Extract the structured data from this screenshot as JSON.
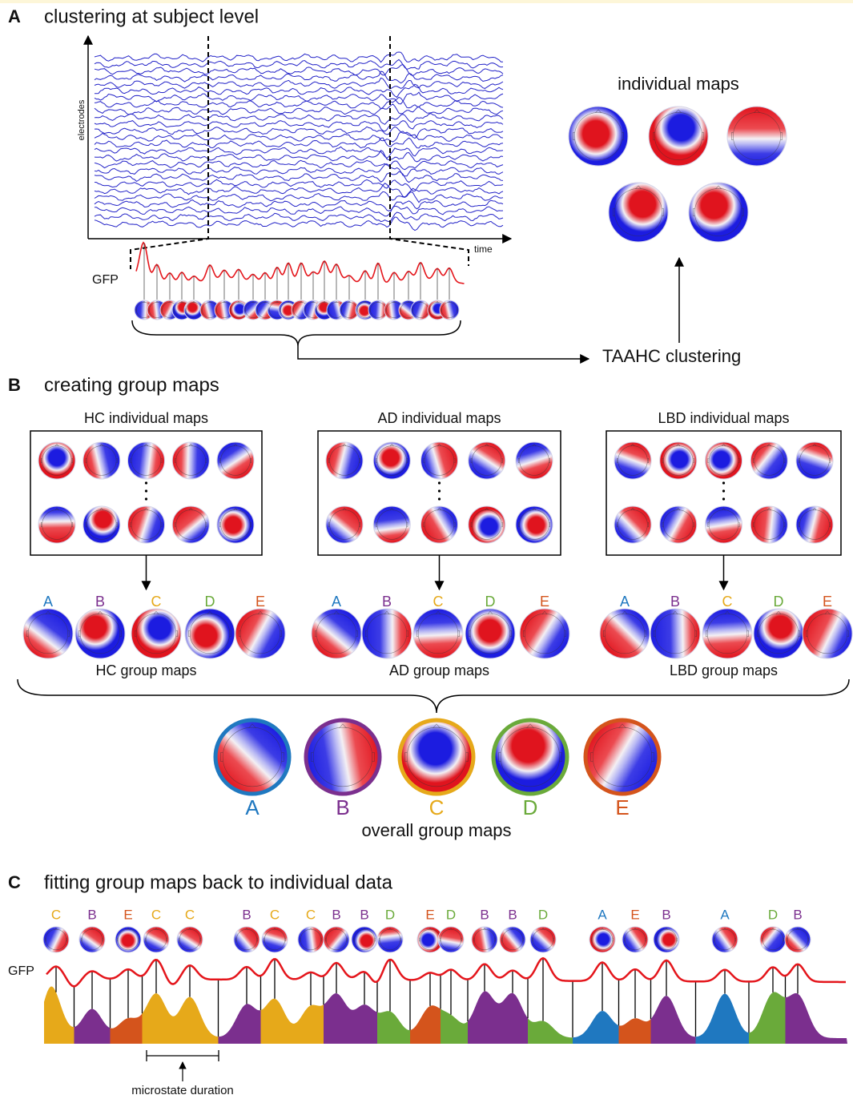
{
  "section_a": {
    "label": "A",
    "title": "clustering at subject level",
    "y_axis": "electrodes",
    "x_axis": "time",
    "gfp": "GFP",
    "maps_title": "individual maps",
    "method": "TAAHC clustering"
  },
  "section_b": {
    "label": "B",
    "title": "creating group maps",
    "groups": [
      {
        "title": "HC individual maps",
        "maps": [
          "A",
          "B",
          "C",
          "D",
          "E"
        ],
        "caption": "HC group maps"
      },
      {
        "title": "AD individual maps",
        "maps": [
          "A",
          "B",
          "C",
          "D",
          "E"
        ],
        "caption": "AD group maps"
      },
      {
        "title": "LBD individual maps",
        "maps": [
          "A",
          "B",
          "C",
          "D",
          "E"
        ],
        "caption": "LBD group maps"
      }
    ],
    "overall": {
      "maps": [
        "A",
        "B",
        "C",
        "D",
        "E"
      ],
      "caption": "overall group maps"
    }
  },
  "section_c": {
    "label": "C",
    "title": "fitting group maps back to individual data",
    "sequence": [
      "C",
      "B",
      "E",
      "C",
      "C",
      "B",
      "C",
      "C",
      "B",
      "B",
      "D",
      "E",
      "D",
      "B",
      "B",
      "D",
      "A",
      "E",
      "B",
      "A",
      "D",
      "B"
    ],
    "gfp": "GFP",
    "duration": "microstate duration"
  },
  "state_colors": {
    "A": "#1f78c0",
    "B": "#7b2f8e",
    "C": "#e6a91a",
    "D": "#6aaa3a",
    "E": "#d4541c"
  }
}
